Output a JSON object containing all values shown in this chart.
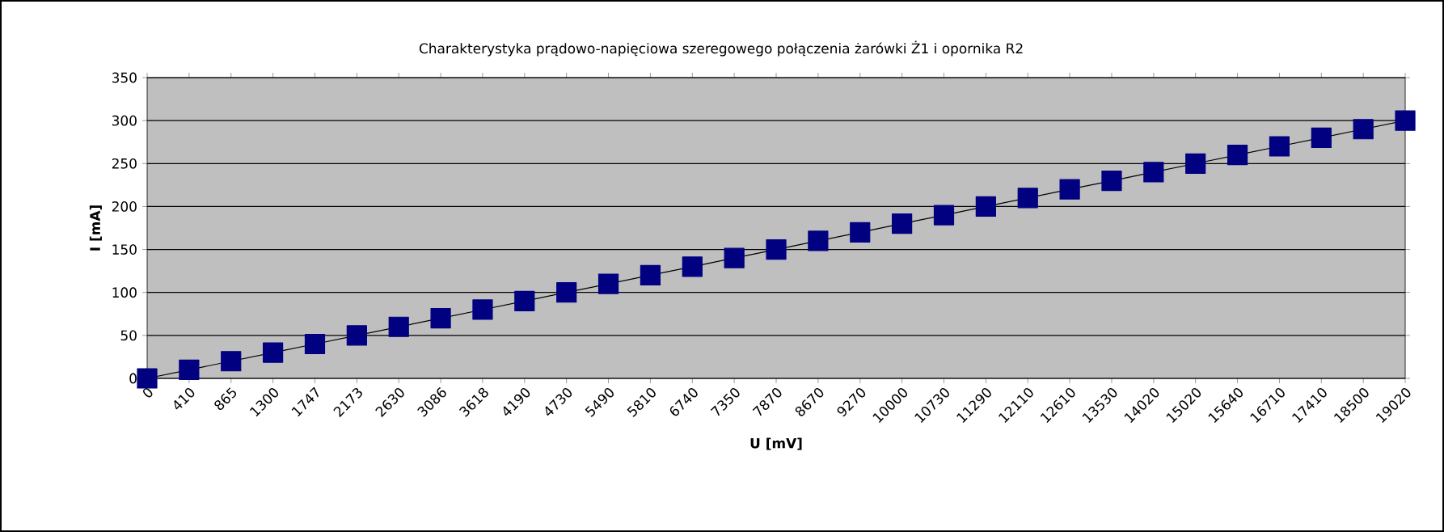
{
  "chart_data": {
    "type": "line",
    "title": "Charakterystyka prądowo-napięciowa szeregowego połączenia żarówki Ż1 i opornika R2",
    "xlabel": "U [mV]",
    "ylabel": "I [mA]",
    "categories": [
      "0",
      "410",
      "865",
      "1300",
      "1747",
      "2173",
      "2630",
      "3086",
      "3618",
      "4190",
      "4730",
      "5490",
      "5810",
      "6740",
      "7350",
      "7870",
      "8670",
      "9270",
      "10000",
      "10730",
      "11290",
      "12110",
      "12610",
      "13530",
      "14020",
      "15020",
      "15640",
      "16710",
      "17410",
      "18500",
      "19020"
    ],
    "series": [
      {
        "color": "#000080",
        "values": [
          0,
          10,
          20,
          30,
          40,
          50,
          60,
          70,
          80,
          90,
          100,
          110,
          120,
          130,
          140,
          150,
          160,
          170,
          180,
          190,
          200,
          210,
          220,
          230,
          240,
          250,
          260,
          270,
          280,
          290,
          300
        ]
      }
    ],
    "ylim": [
      0,
      350
    ],
    "yticks": [
      0,
      50,
      100,
      150,
      200,
      250,
      300,
      350
    ],
    "grid": "y",
    "marker": "square",
    "line_style": "solid"
  }
}
